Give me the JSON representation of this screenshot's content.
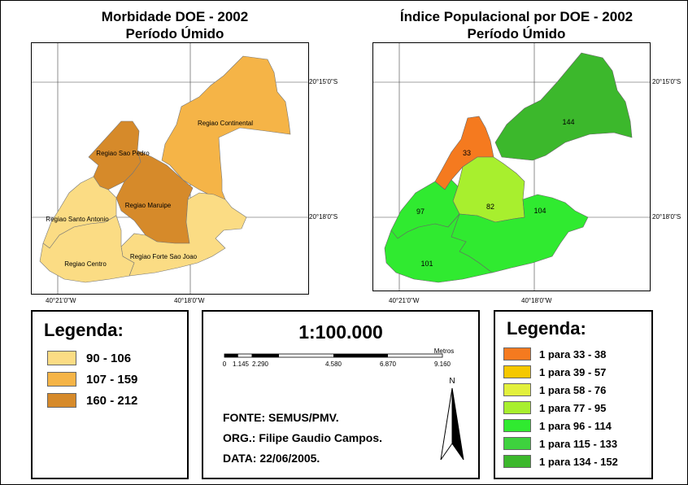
{
  "left_map": {
    "title_line1": "Morbidade DOE - 2002",
    "title_line2": "Período Úmido",
    "regions": {
      "continental": "Regiao Continental",
      "sao_pedro": "Regiao Sao Pedro",
      "maruipe": "Regiao Maruipe",
      "santo_antonio": "Regiao Santo Antonio",
      "centro": "Regiao Centro",
      "forte_sao_joao": "Regiao Forte Sao Joao"
    },
    "coords": {
      "lat_top": "20°15'0\"S",
      "lat_mid": "20°18'0\"S",
      "lon_left": "40°21'0\"W",
      "lon_right": "40°18'0\"W"
    }
  },
  "right_map": {
    "title_line1": "Índice Populacional por DOE - 2002",
    "title_line2": "Período Úmido",
    "values": {
      "continental": "144",
      "sao_pedro": "33",
      "maruipe": "82",
      "santo_antonio": "97",
      "forte_sao_joao": "104",
      "centro": "101"
    },
    "coords": {
      "lat_top": "20°15'0\"S",
      "lat_mid": "20°18'0\"S",
      "lon_left": "40°21'0\"W",
      "lon_right": "40°18'0\"W"
    }
  },
  "left_legend": {
    "title": "Legenda:",
    "items": [
      {
        "label": "90 - 106",
        "color": "#fbdc84"
      },
      {
        "label": "107 - 159",
        "color": "#f5b447"
      },
      {
        "label": "160 - 212",
        "color": "#d68a2a"
      }
    ]
  },
  "right_legend": {
    "title": "Legenda:",
    "items": [
      {
        "label": "1 para 33 - 38",
        "color": "#f57a1f"
      },
      {
        "label": "1 para 39 - 57",
        "color": "#f5c800"
      },
      {
        "label": "1 para 58 - 76",
        "color": "#e2f03c"
      },
      {
        "label": "1 para 77 - 95",
        "color": "#a8ef2e"
      },
      {
        "label": "1 para 96 - 114",
        "color": "#30ea30"
      },
      {
        "label": "1 para 115 - 133",
        "color": "#3ed23e"
      },
      {
        "label": "1 para 134 - 152",
        "color": "#3cb82c"
      }
    ]
  },
  "info": {
    "scale": "1:100.000",
    "scalebar_unit": "Metros",
    "scalebar_ticks": [
      "0",
      "1.145",
      "2.290",
      "4.580",
      "6.870",
      "9.160"
    ],
    "north": "N",
    "source": "FONTE: SEMUS/PMV.",
    "org": "ORG.: Filipe Gaudio Campos.",
    "date": "DATA: 22/06/2005."
  }
}
